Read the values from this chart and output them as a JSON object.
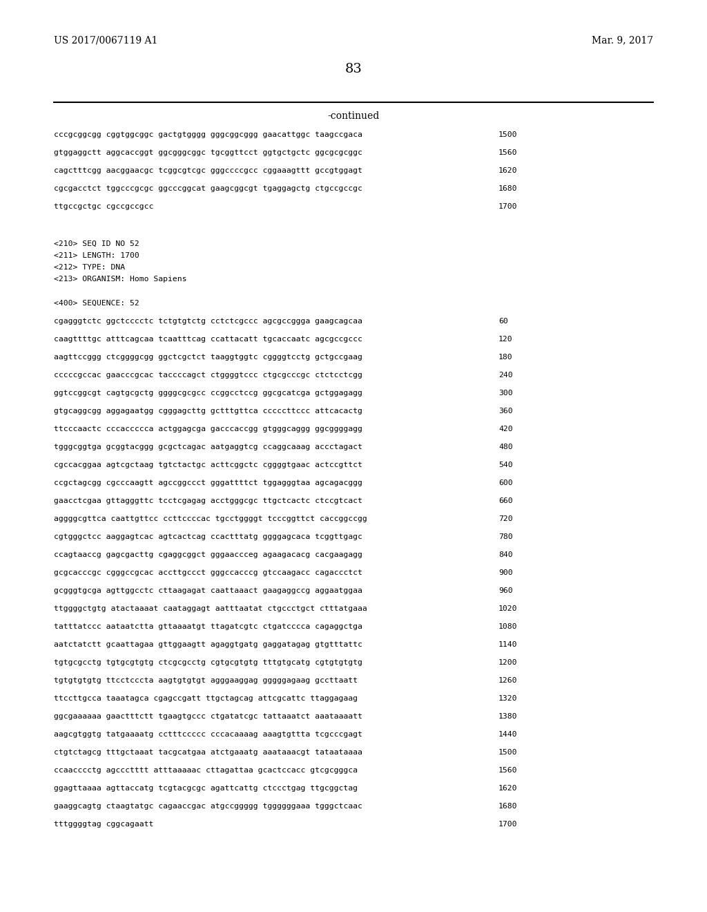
{
  "left_header": "US 2017/0067119 A1",
  "right_header": "Mar. 9, 2017",
  "page_number": "83",
  "continued_label": "-continued",
  "background_color": "#ffffff",
  "text_color": "#000000",
  "sequence_lines_top": [
    {
      "seq": "cccgcggcgg cggtggcggc gactgtgggg gggcggcggg gaacattggc taagccgaca",
      "num": "1500"
    },
    {
      "seq": "gtggaggctt aggcaccggt ggcgggcggc tgcggttcct ggtgctgctc ggcgcgcggc",
      "num": "1560"
    },
    {
      "seq": "cagctttcgg aacggaacgc tcggcgtcgc gggccccgcc cggaaagttt gccgtggagt",
      "num": "1620"
    },
    {
      "seq": "cgcgacctct tggcccgcgc ggcccggcat gaagcggcgt tgaggagctg ctgccgccgc",
      "num": "1680"
    },
    {
      "seq": "ttgccgctgc cgccgccgcc",
      "num": "1700"
    }
  ],
  "seq_id_block": [
    "<210> SEQ ID NO 52",
    "<211> LENGTH: 1700",
    "<212> TYPE: DNA",
    "<213> ORGANISM: Homo Sapiens"
  ],
  "seq_400_label": "<400> SEQUENCE: 52",
  "sequence_lines_bottom": [
    {
      "seq": "cgagggtctc ggctcccctc tctgtgtctg cctctcgccc agcgccggga gaagcagcaa",
      "num": "60"
    },
    {
      "seq": "caagttttgc atttcagcaa tcaatttcag ccattacatt tgcaccaatc agcgccgccc",
      "num": "120"
    },
    {
      "seq": "aagttccggg ctcggggcgg ggctcgctct taaggtggtc cggggtcctg gctgccgaag",
      "num": "180"
    },
    {
      "seq": "cccccgccac gaacccgcac taccccagct ctggggtccc ctgcgcccgc ctctcctcgg",
      "num": "240"
    },
    {
      "seq": "ggtccggcgt cagtgcgctg ggggcgcgcc ccggcctccg ggcgcatcga gctggagagg",
      "num": "300"
    },
    {
      "seq": "gtgcaggcgg aggagaatgg cgggagcttg gctttgttca cccccttccc attcacactg",
      "num": "360"
    },
    {
      "seq": "ttcccaactc cccaccccca actggagcga gacccaccgg gtgggcaggg ggcggggagg",
      "num": "420"
    },
    {
      "seq": "tgggcggtga gcggtacggg gcgctcagac aatgaggtcg ccaggcaaag accctagact",
      "num": "480"
    },
    {
      "seq": "cgccacggaa agtcgctaag tgtctactgc acttcggctc cggggtgaac actccgttct",
      "num": "540"
    },
    {
      "seq": "ccgctagcgg cgcccaagtt agccggccct gggattttct tggagggtaa agcagacggg",
      "num": "600"
    },
    {
      "seq": "gaacctcgaa gttagggttc tcctcgagag acctgggcgc ttgctcactc ctccgtcact",
      "num": "660"
    },
    {
      "seq": "aggggcgttca caattgttcc ccttccccac tgcctggggt tcccggttct caccggccgg",
      "num": "720"
    },
    {
      "seq": "cgtgggctcc aaggagtcac agtcactcag ccactttatg ggggagcaca tcggttgagc",
      "num": "780"
    },
    {
      "seq": "ccagtaaccg gagcgacttg cgaggcggct gggaaccceg agaagacacg cacgaagagg",
      "num": "840"
    },
    {
      "seq": "gcgcacccgc cgggccgcac accttgccct gggccacccg gtccaagacc cagaccctct",
      "num": "900"
    },
    {
      "seq": "gcgggtgcga agttggcctc cttaagagat caattaaact gaagaggccg aggaatggaa",
      "num": "960"
    },
    {
      "seq": "ttggggctgtg atactaaaat caataggagt aatttaatat ctgccctgct ctttatgaaa",
      "num": "1020"
    },
    {
      "seq": "tatttatccc aataatctta gttaaaatgt ttagatcgtc ctgatcccca cagaggctga",
      "num": "1080"
    },
    {
      "seq": "aatctatctt gcaattagaa gttggaagtt agaggtgatg gaggatagag gtgtttattc",
      "num": "1140"
    },
    {
      "seq": "tgtgcgcctg tgtgcgtgtg ctcgcgcctg cgtgcgtgtg tttgtgcatg cgtgtgtgtg",
      "num": "1200"
    },
    {
      "seq": "tgtgtgtgtg ttcctcccta aagtgtgtgt agggaaggag gggggagaag gccttaatt",
      "num": "1260"
    },
    {
      "seq": "ttccttgcca taaatagca cgagccgatt ttgctagcag attcgcattc ttaggagaag",
      "num": "1320"
    },
    {
      "seq": "ggcgaaaaaa gaactttctt tgaagtgccc ctgatatcgc tattaaatct aaataaaatt",
      "num": "1380"
    },
    {
      "seq": "aagcgtggtg tatgaaaatg cctttccccc cccacaaaag aaagtgttta tcgcccgagt",
      "num": "1440"
    },
    {
      "seq": "ctgtctagcg tttgctaaat tacgcatgaa atctgaaatg aaataaacgt tataataaaa",
      "num": "1500"
    },
    {
      "seq": "ccaacccctg agccctttt atttaaaaac cttagattaa gcactccacc gtcgcgggca",
      "num": "1560"
    },
    {
      "seq": "ggagttaaaa agttaccatg tcgtacgcgc agattcattg ctccctgag ttgcggctag",
      "num": "1620"
    },
    {
      "seq": "gaaggcagtg ctaagtatgc cagaaccgac atgccggggg tggggggaaa tgggctcaac",
      "num": "1680"
    },
    {
      "seq": "tttggggtag cggcagaatt",
      "num": "1700"
    }
  ]
}
